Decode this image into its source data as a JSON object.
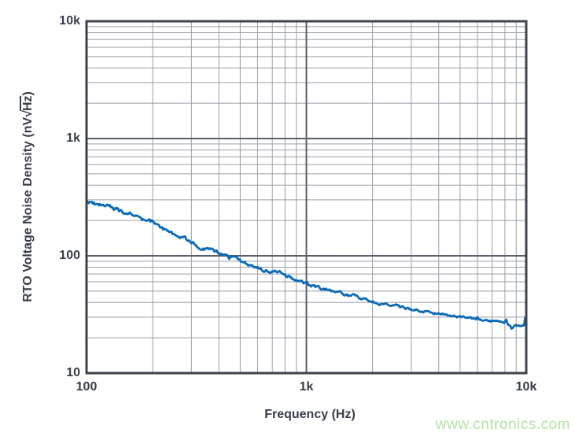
{
  "chart": {
    "y_axis": {
      "title_prefix": "RTO Voltage Noise Density (nV",
      "radical": "√",
      "radicand": "Hz",
      "title_suffix": ")",
      "ticks": [
        {
          "label": "10k",
          "value": 10000
        },
        {
          "label": "1k",
          "value": 1000
        },
        {
          "label": "100",
          "value": 100
        },
        {
          "label": "10",
          "value": 10
        }
      ]
    },
    "x_axis": {
      "title": "Frequency (Hz)",
      "ticks": [
        {
          "label": "100",
          "value": 100
        },
        {
          "label": "1k",
          "value": 1000
        },
        {
          "label": "10k",
          "value": 10000
        }
      ]
    },
    "watermark": "www.cntronics.com",
    "colors": {
      "curve": "#0b6bb7",
      "grid_minor": "#999ea6",
      "grid_major": "#5a606a",
      "frame": "#3d434d",
      "text": "#373d48",
      "watermark": "#b0e2a3"
    }
  },
  "chart_data": {
    "type": "line",
    "title": "",
    "xlabel": "Frequency (Hz)",
    "ylabel": "RTO Voltage Noise Density (nV/√Hz)",
    "x_scale": "log",
    "y_scale": "log",
    "xlim": [
      100,
      10000
    ],
    "ylim": [
      10,
      10000
    ],
    "grid": "log-minor-and-major",
    "legend": "none",
    "series": [
      {
        "name": "RTO voltage noise density",
        "color": "#0b6bb7",
        "points": [
          [
            100,
            290
          ],
          [
            108,
            276
          ],
          [
            118,
            266
          ],
          [
            128,
            258
          ],
          [
            138,
            250
          ],
          [
            148,
            237
          ],
          [
            160,
            226
          ],
          [
            172,
            214
          ],
          [
            185,
            196
          ],
          [
            200,
            190
          ],
          [
            214,
            172
          ],
          [
            230,
            161
          ],
          [
            250,
            152
          ],
          [
            280,
            140
          ],
          [
            300,
            131
          ],
          [
            340,
            117
          ],
          [
            380,
            108
          ],
          [
            420,
            101
          ],
          [
            460,
            95
          ],
          [
            500,
            90
          ],
          [
            560,
            83
          ],
          [
            630,
            77
          ],
          [
            700,
            72
          ],
          [
            755,
            73
          ],
          [
            810,
            67
          ],
          [
            900,
            62
          ],
          [
            1000,
            57.5
          ],
          [
            1150,
            53
          ],
          [
            1300,
            50
          ],
          [
            1500,
            47
          ],
          [
            1700,
            44.5
          ],
          [
            2000,
            40.5
          ],
          [
            2400,
            38
          ],
          [
            2800,
            36
          ],
          [
            3300,
            34
          ],
          [
            4000,
            32
          ],
          [
            4700,
            30.7
          ],
          [
            5500,
            29.4
          ],
          [
            6500,
            28
          ],
          [
            7500,
            26.8
          ],
          [
            8500,
            25.8
          ],
          [
            9300,
            25.2
          ],
          [
            10000,
            25.3
          ]
        ]
      }
    ],
    "noise_spikes": [
      {
        "f": 138,
        "amp": 0.035,
        "w": 0.006
      },
      {
        "f": 200,
        "amp": 0.05,
        "w": 0.007
      },
      {
        "f": 750,
        "amp": 0.045,
        "w": 0.006
      },
      {
        "f": 6000,
        "amp": 0.085,
        "w": 0.0045
      },
      {
        "f": 8100,
        "amp": 0.09,
        "w": 0.0045
      },
      {
        "f": 8600,
        "amp": -0.06,
        "w": 0.005
      },
      {
        "f": 9960,
        "amp": 0.26,
        "w": 0.005
      }
    ]
  }
}
